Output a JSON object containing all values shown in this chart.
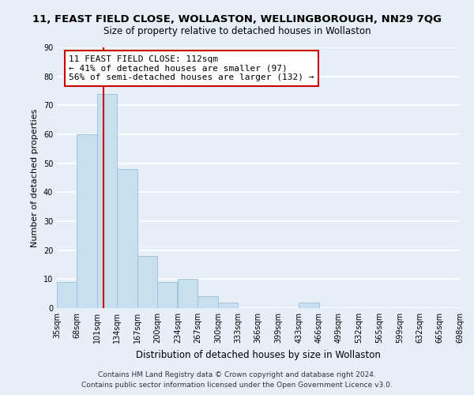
{
  "title": "11, FEAST FIELD CLOSE, WOLLASTON, WELLINGBOROUGH, NN29 7QG",
  "subtitle": "Size of property relative to detached houses in Wollaston",
  "xlabel": "Distribution of detached houses by size in Wollaston",
  "ylabel": "Number of detached properties",
  "bar_color": "#c8dff0",
  "bar_edge_color": "#a0c4e0",
  "bins": [
    35,
    68,
    101,
    134,
    167,
    200,
    234,
    267,
    300,
    333,
    366,
    399,
    433,
    466,
    499,
    532,
    565,
    599,
    632,
    665,
    698
  ],
  "counts": [
    9,
    60,
    74,
    48,
    18,
    9,
    10,
    4,
    2,
    0,
    0,
    0,
    2,
    0,
    0,
    0,
    0,
    0,
    0,
    0
  ],
  "property_size": 112,
  "vline_color": "#cc0000",
  "annotation_line1": "11 FEAST FIELD CLOSE: 112sqm",
  "annotation_line2": "← 41% of detached houses are smaller (97)",
  "annotation_line3": "56% of semi-detached houses are larger (132) →",
  "annotation_box_color": "#ffffff",
  "annotation_box_edge": "#cc0000",
  "ylim": [
    0,
    90
  ],
  "yticks": [
    0,
    10,
    20,
    30,
    40,
    50,
    60,
    70,
    80,
    90
  ],
  "tick_labels": [
    "35sqm",
    "68sqm",
    "101sqm",
    "134sqm",
    "167sqm",
    "200sqm",
    "234sqm",
    "267sqm",
    "300sqm",
    "333sqm",
    "366sqm",
    "399sqm",
    "433sqm",
    "466sqm",
    "499sqm",
    "532sqm",
    "565sqm",
    "599sqm",
    "632sqm",
    "665sqm",
    "698sqm"
  ],
  "footer_line1": "Contains HM Land Registry data © Crown copyright and database right 2024.",
  "footer_line2": "Contains public sector information licensed under the Open Government Licence v3.0.",
  "background_color": "#e8eef8",
  "grid_color": "#ffffff",
  "title_fontsize": 9.5,
  "subtitle_fontsize": 8.5,
  "xlabel_fontsize": 8.5,
  "ylabel_fontsize": 8,
  "tick_fontsize": 7,
  "annotation_fontsize": 8,
  "footer_fontsize": 6.5
}
